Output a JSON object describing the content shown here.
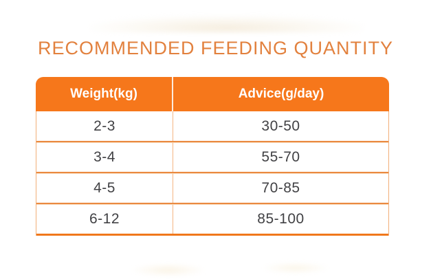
{
  "title": {
    "text": "RECOMMENDED FEEDING QUANTITY",
    "color": "#E2813E"
  },
  "table": {
    "columns": [
      "Weight(kg)",
      "Advice(g/day)"
    ],
    "rows": [
      [
        "2-3",
        "30-50"
      ],
      [
        "3-4",
        "55-70"
      ],
      [
        "4-5",
        "70-85"
      ],
      [
        "6-12",
        "85-100"
      ]
    ],
    "colors": {
      "header_background": "#F6771B",
      "header_text": "#FFFFFF",
      "row_separator_dark": "#EA8A41",
      "row_separator_light": "#F8D6B4",
      "side_border": "#F2AE78",
      "column_divider": "#F4B482",
      "bottom_border": "#F0781C",
      "cell_text": "#414144"
    }
  },
  "chart_data": {
    "type": "table",
    "title": "RECOMMENDED FEEDING QUANTITY",
    "columns": [
      "Weight(kg)",
      "Advice(g/day)"
    ],
    "rows": [
      [
        "2-3",
        "30-50"
      ],
      [
        "3-4",
        "55-70"
      ],
      [
        "4-5",
        "70-85"
      ],
      [
        "6-12",
        "85-100"
      ]
    ]
  }
}
